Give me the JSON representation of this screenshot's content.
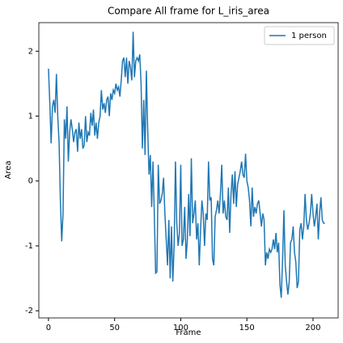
{
  "chart_data": {
    "type": "line",
    "title": "Compare All frame for L_iris_area",
    "x_label": "Frame",
    "y_label": "Area",
    "x": [
      0,
      1,
      2,
      3,
      4,
      5,
      6,
      7,
      8,
      9,
      10,
      11,
      12,
      13,
      14,
      15,
      16,
      17,
      18,
      19,
      20,
      21,
      22,
      23,
      24,
      25,
      26,
      27,
      28,
      29,
      30,
      31,
      32,
      33,
      34,
      35,
      36,
      37,
      38,
      39,
      40,
      41,
      42,
      43,
      44,
      45,
      46,
      47,
      48,
      49,
      50,
      51,
      52,
      53,
      54,
      55,
      56,
      57,
      58,
      59,
      60,
      61,
      62,
      63,
      64,
      65,
      66,
      67,
      68,
      69,
      70,
      71,
      72,
      73,
      74,
      75,
      76,
      77,
      78,
      79,
      80,
      81,
      82,
      83,
      84,
      85,
      86,
      87,
      88,
      89,
      90,
      91,
      92,
      93,
      94,
      95,
      96,
      97,
      98,
      99,
      100,
      101,
      102,
      103,
      104,
      105,
      106,
      107,
      108,
      109,
      110,
      111,
      112,
      113,
      114,
      115,
      116,
      117,
      118,
      119,
      120,
      121,
      122,
      123,
      124,
      125,
      126,
      127,
      128,
      129,
      130,
      131,
      132,
      133,
      134,
      135,
      136,
      137,
      138,
      139,
      140,
      141,
      142,
      143,
      144,
      145,
      146,
      147,
      148,
      149,
      150,
      151,
      152,
      153,
      154,
      155,
      156,
      157,
      158,
      159,
      160,
      161,
      162,
      163,
      164,
      165,
      166,
      167,
      168,
      169,
      170,
      171,
      172,
      173,
      174,
      175,
      176,
      177,
      178,
      179,
      180,
      181,
      182,
      183,
      184,
      185,
      186,
      187,
      188,
      189,
      190,
      191,
      192,
      193,
      194,
      195,
      196,
      197,
      198,
      199,
      200,
      201,
      202,
      203,
      204,
      205,
      206,
      207,
      208,
      209
    ],
    "series": [
      {
        "name": "1 person",
        "color": "#1f77b4",
        "values": [
          1.73,
          1.2,
          0.58,
          1.15,
          1.25,
          1.05,
          1.65,
          1.0,
          0.6,
          -0.3,
          -0.93,
          -0.5,
          0.95,
          0.65,
          1.15,
          0.3,
          0.75,
          0.95,
          0.8,
          0.6,
          0.75,
          0.8,
          0.45,
          0.9,
          0.65,
          0.8,
          0.5,
          0.55,
          1.0,
          0.6,
          0.75,
          0.7,
          1.05,
          0.85,
          1.1,
          0.7,
          0.9,
          0.65,
          0.9,
          1.0,
          1.4,
          1.1,
          1.2,
          1.05,
          1.25,
          1.3,
          1.0,
          1.35,
          1.25,
          1.4,
          1.35,
          1.5,
          1.4,
          1.45,
          1.3,
          1.55,
          1.85,
          1.9,
          1.6,
          1.9,
          1.5,
          1.85,
          1.75,
          1.55,
          2.3,
          1.6,
          1.85,
          1.9,
          1.85,
          1.95,
          1.5,
          0.5,
          1.25,
          0.4,
          1.7,
          0.8,
          0.1,
          0.4,
          -0.4,
          0.3,
          -0.5,
          -1.42,
          -1.4,
          0.25,
          -0.35,
          -0.3,
          -0.2,
          0.05,
          -0.5,
          -0.9,
          -1.3,
          -0.6,
          -1.5,
          -0.7,
          -1.55,
          -1.0,
          0.3,
          -0.65,
          -1.0,
          -0.8,
          0.25,
          -1.0,
          -0.9,
          -0.4,
          -1.2,
          -0.9,
          -0.2,
          -0.85,
          0.35,
          -0.65,
          -0.5,
          -0.3,
          -0.9,
          -0.65,
          -1.3,
          -0.75,
          -0.3,
          -0.5,
          -1.0,
          -0.5,
          -0.6,
          0.3,
          -0.3,
          -0.25,
          -1.2,
          -1.3,
          -0.55,
          -0.45,
          -0.3,
          -0.5,
          -0.2,
          0.25,
          -0.5,
          -0.3,
          -0.55,
          -0.6,
          -0.1,
          -0.8,
          -0.2,
          0.1,
          -0.35,
          0.15,
          -0.4,
          -0.05,
          0.05,
          0.15,
          0.3,
          0.1,
          0.05,
          0.42,
          0.0,
          -0.1,
          -0.3,
          -0.7,
          -0.1,
          -0.55,
          -0.4,
          -0.5,
          -0.35,
          -0.3,
          -0.5,
          -0.7,
          -0.5,
          -0.6,
          -1.3,
          -1.1,
          -1.2,
          -1.05,
          -1.1,
          -1.05,
          -0.9,
          -1.05,
          -0.8,
          -1.1,
          -0.95,
          -1.6,
          -1.8,
          -1.2,
          -0.45,
          -1.3,
          -1.55,
          -1.75,
          -1.55,
          -0.95,
          -0.9,
          -0.7,
          -1.1,
          -1.25,
          -1.65,
          -1.55,
          -0.75,
          -0.65,
          -0.9,
          -0.7,
          -0.2,
          -0.6,
          -0.75,
          -0.65,
          -0.5,
          -0.2,
          -0.5,
          -0.7,
          -0.55,
          -0.35,
          -0.9,
          -0.5,
          -0.25,
          -0.6,
          -0.65,
          -0.65
        ]
      }
    ],
    "xlim": [
      -7.3,
      219
    ],
    "ylim": [
      -2.11,
      2.44
    ],
    "xticks": [
      0,
      50,
      100,
      150,
      200
    ],
    "yticks": [
      -2,
      -1,
      0,
      1,
      2
    ],
    "legend": "upper right"
  }
}
